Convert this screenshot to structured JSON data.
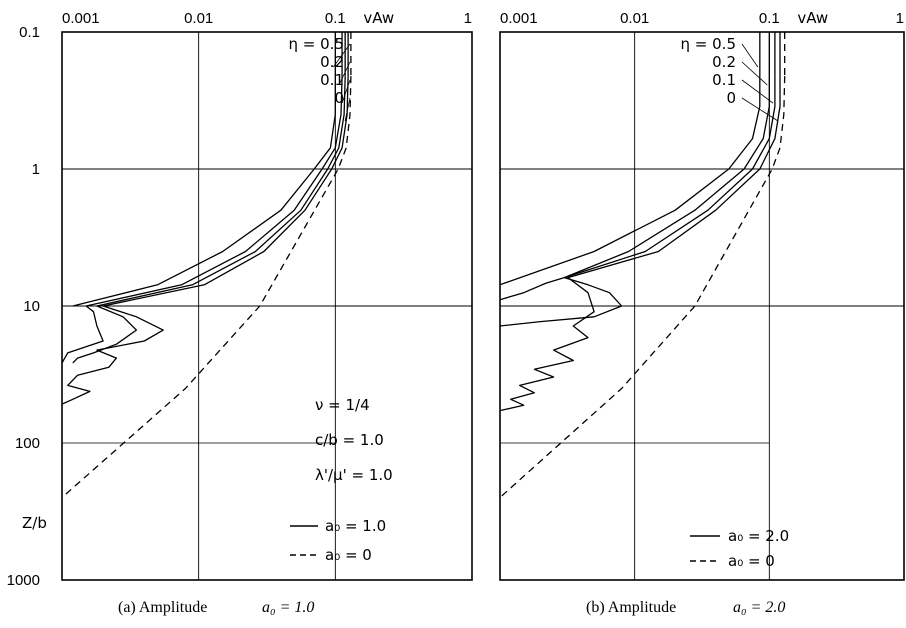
{
  "chart_data": [
    {
      "panel": "a",
      "type": "line",
      "caption": "(a) Amplitude",
      "caption_param": "a₀ = 1.0",
      "x_axis": {
        "label": "vAw",
        "scale": "log",
        "range": [
          0.001,
          1
        ],
        "ticks": [
          "0.001",
          "0.01",
          "0.1",
          "1"
        ]
      },
      "y_axis": {
        "label": "Z/b",
        "scale": "log",
        "reversed": true,
        "range": [
          0.1,
          1000
        ],
        "ticks": [
          "0.1",
          "1",
          "10",
          "100",
          "1000"
        ]
      },
      "eta_labels": [
        "η = 0.5",
        "0.2",
        "0.1",
        "0"
      ],
      "params": [
        "ν = 1/4",
        "c/b = 1.0",
        "λ'/μ' = 1.0"
      ],
      "legend": [
        {
          "style": "solid",
          "text": "a₀ = 1.0"
        },
        {
          "style": "dashed",
          "text": "a₀ = 0"
        }
      ],
      "series": [
        {
          "name": "η = 0.5",
          "style": "solid",
          "points": [
            [
              0.1,
              0.21
            ],
            [
              0.1,
              0.4
            ],
            [
              0.092,
              0.7
            ],
            [
              0.07,
              1.0
            ],
            [
              0.04,
              2
            ],
            [
              0.015,
              4
            ],
            [
              0.005,
              7
            ],
            [
              0.0012,
              10
            ]
          ]
        },
        {
          "name": "η = 0.2",
          "style": "solid",
          "points": [
            [
              0.112,
              0.21
            ],
            [
              0.11,
              0.4
            ],
            [
              0.1,
              0.7
            ],
            [
              0.08,
              1.0
            ],
            [
              0.05,
              2
            ],
            [
              0.022,
              4
            ],
            [
              0.0075,
              7
            ],
            [
              0.0015,
              10
            ],
            [
              0.0017,
              11
            ],
            [
              0.0018,
              14
            ],
            [
              0.002,
              18
            ],
            [
              0.0011,
              22
            ],
            [
              0.001,
              26
            ]
          ]
        },
        {
          "name": "η = 0.1",
          "style": "solid",
          "points": [
            [
              0.118,
              0.21
            ],
            [
              0.116,
              0.4
            ],
            [
              0.106,
              0.7
            ],
            [
              0.088,
              1.0
            ],
            [
              0.056,
              2
            ],
            [
              0.026,
              4
            ],
            [
              0.009,
              7
            ],
            [
              0.0018,
              10
            ],
            [
              0.0028,
              12
            ],
            [
              0.0035,
              15
            ],
            [
              0.0025,
              19
            ],
            [
              0.0017,
              22
            ],
            [
              0.0013,
              24
            ],
            [
              0.0012,
              26
            ]
          ]
        },
        {
          "name": "η = 0",
          "style": "solid",
          "points": [
            [
              0.124,
              0.21
            ],
            [
              0.122,
              0.4
            ],
            [
              0.112,
              0.7
            ],
            [
              0.094,
              1.0
            ],
            [
              0.06,
              2
            ],
            [
              0.03,
              4
            ],
            [
              0.011,
              7
            ],
            [
              0.002,
              10
            ],
            [
              0.0035,
              12
            ],
            [
              0.0055,
              15
            ],
            [
              0.004,
              18
            ],
            [
              0.0018,
              21
            ],
            [
              0.0025,
              24
            ],
            [
              0.0022,
              28
            ],
            [
              0.0013,
              32
            ],
            [
              0.0011,
              38
            ],
            [
              0.0016,
              42
            ],
            [
              0.0012,
              48
            ],
            [
              0.001,
              52
            ]
          ]
        },
        {
          "name": "a₀ = 0",
          "style": "dashed",
          "points": [
            [
              0.13,
              0.21
            ],
            [
              0.128,
              0.4
            ],
            [
              0.12,
              0.7
            ],
            [
              0.105,
              1.0
            ],
            [
              0.028,
              10
            ],
            [
              0.008,
              40
            ],
            [
              0.001,
              250
            ]
          ]
        }
      ]
    },
    {
      "panel": "b",
      "type": "line",
      "caption": "(b) Amplitude",
      "caption_param": "a₀ = 2.0",
      "x_axis": {
        "label": "vAw",
        "scale": "log",
        "range": [
          0.001,
          1
        ],
        "ticks": [
          "0.001",
          "0.01",
          "0.1",
          "1"
        ]
      },
      "y_axis": {
        "label": "Z/b",
        "scale": "log",
        "reversed": true,
        "range": [
          0.1,
          1000
        ]
      },
      "eta_labels": [
        "η = 0.5",
        "0.2",
        "0.1",
        "0"
      ],
      "legend": [
        {
          "style": "solid",
          "text": "a₀ = 2.0"
        },
        {
          "style": "dashed",
          "text": "a₀ = 0"
        }
      ],
      "series": [
        {
          "name": "η = 0.5",
          "style": "solid",
          "points": [
            [
              0.085,
              0.21
            ],
            [
              0.085,
              0.35
            ],
            [
              0.075,
              0.6
            ],
            [
              0.05,
              1.0
            ],
            [
              0.02,
              2
            ],
            [
              0.005,
              4
            ],
            [
              0.001,
              7
            ]
          ]
        },
        {
          "name": "η = 0.2",
          "style": "solid",
          "points": [
            [
              0.1,
              0.21
            ],
            [
              0.1,
              0.35
            ],
            [
              0.09,
              0.6
            ],
            [
              0.065,
              1.0
            ],
            [
              0.028,
              2
            ],
            [
              0.009,
              4
            ],
            [
              0.003,
              6.2
            ],
            [
              0.0022,
              6.8
            ],
            [
              0.0015,
              8
            ],
            [
              0.001,
              9
            ]
          ]
        },
        {
          "name": "η = 0.1",
          "style": "solid",
          "points": [
            [
              0.11,
              0.21
            ],
            [
              0.11,
              0.35
            ],
            [
              0.1,
              0.6
            ],
            [
              0.075,
              1.0
            ],
            [
              0.035,
              2
            ],
            [
              0.012,
              4
            ],
            [
              0.003,
              6.2
            ],
            [
              0.0045,
              7
            ],
            [
              0.0065,
              8
            ],
            [
              0.008,
              10
            ],
            [
              0.005,
              12
            ],
            [
              0.002,
              13
            ],
            [
              0.001,
              14
            ]
          ]
        },
        {
          "name": "η = 0",
          "style": "solid",
          "points": [
            [
              0.12,
              0.21
            ],
            [
              0.12,
              0.35
            ],
            [
              0.11,
              0.6
            ],
            [
              0.085,
              1.0
            ],
            [
              0.04,
              2
            ],
            [
              0.015,
              4
            ],
            [
              0.0032,
              6.2
            ],
            [
              0.0045,
              8
            ],
            [
              0.005,
              11
            ],
            [
              0.0035,
              14
            ],
            [
              0.0045,
              17
            ],
            [
              0.0025,
              21
            ],
            [
              0.0035,
              25
            ],
            [
              0.0018,
              29
            ],
            [
              0.0025,
              33
            ],
            [
              0.0014,
              38
            ],
            [
              0.0018,
              43
            ],
            [
              0.0012,
              48
            ],
            [
              0.0015,
              53
            ],
            [
              0.001,
              58
            ]
          ]
        },
        {
          "name": "a₀ = 0",
          "style": "dashed",
          "points": [
            [
              0.13,
              0.21
            ],
            [
              0.128,
              0.4
            ],
            [
              0.12,
              0.7
            ],
            [
              0.105,
              1.0
            ],
            [
              0.028,
              10
            ],
            [
              0.008,
              40
            ],
            [
              0.001,
              250
            ]
          ]
        }
      ]
    }
  ]
}
